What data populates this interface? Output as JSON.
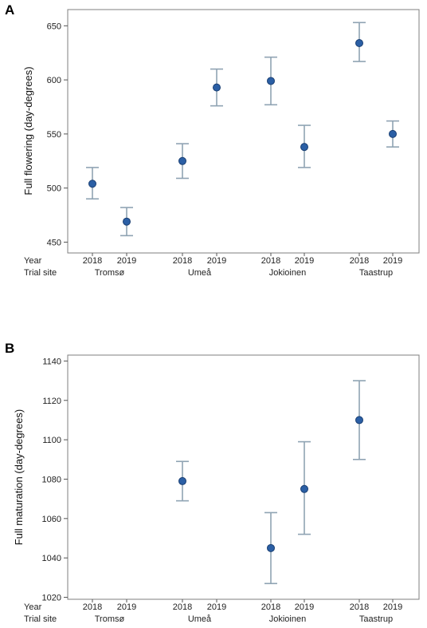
{
  "chart_data": [
    {
      "panel": "A",
      "type": "scatter",
      "ylabel": "Full flowering (day-degrees)",
      "row_labels": {
        "year": "Year",
        "site": "Trial site"
      },
      "yticks": [
        450,
        500,
        550,
        600,
        650
      ],
      "ylim": [
        440,
        665
      ],
      "groups": [
        {
          "site": "Tromsø",
          "years": [
            "2018",
            "2019"
          ]
        },
        {
          "site": "Umeå",
          "years": [
            "2018",
            "2019"
          ]
        },
        {
          "site": "Jokioinen",
          "years": [
            "2018",
            "2019"
          ]
        },
        {
          "site": "Taastrup",
          "years": [
            "2018",
            "2019"
          ]
        }
      ],
      "points": [
        {
          "site": "Tromsø",
          "year": "2018",
          "y": 504,
          "low": 490,
          "high": 519
        },
        {
          "site": "Tromsø",
          "year": "2019",
          "y": 469,
          "low": 456,
          "high": 482
        },
        {
          "site": "Umeå",
          "year": "2018",
          "y": 525,
          "low": 509,
          "high": 541
        },
        {
          "site": "Umeå",
          "year": "2019",
          "y": 593,
          "low": 576,
          "high": 610
        },
        {
          "site": "Jokioinen",
          "year": "2018",
          "y": 599,
          "low": 577,
          "high": 621
        },
        {
          "site": "Jokioinen",
          "year": "2019",
          "y": 538,
          "low": 519,
          "high": 558
        },
        {
          "site": "Taastrup",
          "year": "2018",
          "y": 634,
          "low": 617,
          "high": 653
        },
        {
          "site": "Taastrup",
          "year": "2019",
          "y": 550,
          "low": 538,
          "high": 562
        }
      ]
    },
    {
      "panel": "B",
      "type": "scatter",
      "ylabel": "Full maturation (day-degrees)",
      "row_labels": {
        "year": "Year",
        "site": "Trial site"
      },
      "yticks": [
        1020,
        1040,
        1060,
        1080,
        1100,
        1120,
        1140
      ],
      "ylim": [
        1019,
        1143
      ],
      "groups": [
        {
          "site": "Tromsø",
          "years": [
            "2018",
            "2019"
          ]
        },
        {
          "site": "Umeå",
          "years": [
            "2018",
            "2019"
          ]
        },
        {
          "site": "Jokioinen",
          "years": [
            "2018",
            "2019"
          ]
        },
        {
          "site": "Taastrup",
          "years": [
            "2018",
            "2019"
          ]
        }
      ],
      "points": [
        {
          "site": "Umeå",
          "year": "2018",
          "y": 1079,
          "low": 1069,
          "high": 1089
        },
        {
          "site": "Jokioinen",
          "year": "2018",
          "y": 1045,
          "low": 1027,
          "high": 1063
        },
        {
          "site": "Jokioinen",
          "year": "2019",
          "y": 1075,
          "low": 1052,
          "high": 1099
        },
        {
          "site": "Taastrup",
          "year": "2018",
          "y": 1110,
          "low": 1090,
          "high": 1130
        }
      ]
    }
  ],
  "colors": {
    "point": "#2b5fa5",
    "errorbar": "#8fa3b3",
    "frame": "#7f7f7f"
  }
}
